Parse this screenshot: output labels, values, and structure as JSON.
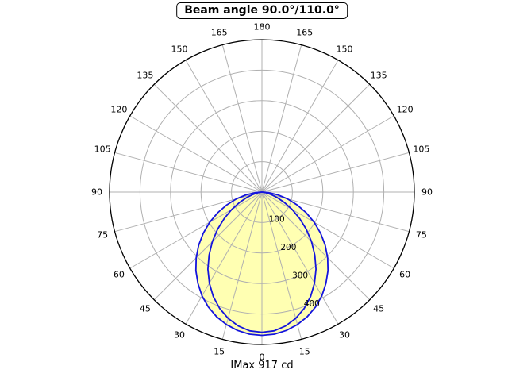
{
  "colors": {
    "curve": "#1414dd",
    "fill": "#ffffb2",
    "grid": "#b0b0b0",
    "outer_ring": "#000000",
    "text": "#000000",
    "background": "#ffffff"
  },
  "chart_data": {
    "type": "polar-line",
    "title": "Beam angle 90.0°/110.0°",
    "imax_label": "IMax 917 cd",
    "imax_cd": 917,
    "beam_angles_deg": [
      90.0,
      110.0
    ],
    "angle_ticks_deg": [
      0,
      15,
      30,
      45,
      60,
      75,
      90,
      105,
      120,
      135,
      150,
      165,
      180
    ],
    "radial_ticks": [
      100,
      200,
      300,
      400
    ],
    "r_max": 500,
    "grid": true,
    "series": [
      {
        "name": "beam_110deg",
        "beam_angle_deg": 110.0,
        "filled": true,
        "angles_deg": [
          0,
          5,
          10,
          15,
          20,
          25,
          30,
          35,
          40,
          45,
          50,
          55,
          60,
          65,
          70,
          75,
          80,
          85,
          90
        ],
        "values": [
          470,
          468,
          461,
          450,
          435,
          416,
          393,
          366,
          337,
          305,
          271,
          235,
          198,
          160,
          123,
          87,
          53,
          22,
          0
        ]
      },
      {
        "name": "beam_90deg",
        "beam_angle_deg": 90.0,
        "filled": false,
        "angles_deg": [
          0,
          5,
          10,
          15,
          20,
          25,
          30,
          35,
          40,
          45,
          50,
          55,
          60,
          65,
          70,
          75,
          80,
          85,
          90
        ],
        "values": [
          460,
          457,
          446,
          429,
          406,
          378,
          345,
          309,
          270,
          230,
          190,
          151,
          115,
          82,
          54,
          31,
          14,
          3,
          0
        ]
      }
    ]
  }
}
